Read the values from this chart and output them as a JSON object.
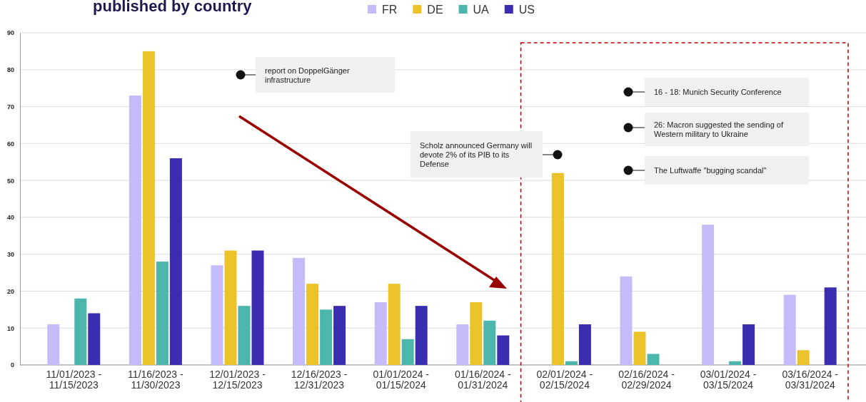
{
  "chart_data": {
    "type": "bar",
    "title": "published by country",
    "categories": [
      "11/01/2023 - 11/15/2023",
      "11/16/2023 - 11/30/2023",
      "12/01/2023 - 12/15/2023",
      "12/16/2023 - 12/31/2023",
      "01/01/2024 - 01/15/2024",
      "01/16/2024 - 01/31/2024",
      "02/01/2024 - 02/15/2024",
      "02/16/2024 - 02/29/2024",
      "03/01/2024 - 03/15/2024",
      "03/16/2024 - 03/31/2024"
    ],
    "series": [
      {
        "name": "FR",
        "color": "#c4bcf8",
        "values": [
          11,
          73,
          27,
          29,
          17,
          11,
          0,
          24,
          38,
          19
        ]
      },
      {
        "name": "DE",
        "color": "#ecc22a",
        "values": [
          0,
          85,
          31,
          22,
          22,
          17,
          52,
          9,
          0,
          4
        ]
      },
      {
        "name": "UA",
        "color": "#4db6ac",
        "values": [
          18,
          28,
          16,
          15,
          7,
          12,
          1,
          3,
          1,
          0
        ]
      },
      {
        "name": "US",
        "color": "#3a2db0",
        "values": [
          14,
          56,
          31,
          16,
          16,
          8,
          11,
          0,
          11,
          21
        ]
      }
    ],
    "ylim": [
      0,
      90
    ],
    "yticks": [
      0,
      10,
      20,
      30,
      40,
      50,
      60,
      70,
      80,
      90
    ],
    "grid": "y",
    "legend": "top",
    "annotations": [
      "report on DoppelGänger infrastructure",
      "Scholz announced Germany will devote 2% of its PIB to its Defense",
      "16 - 18: Munich Security Conference",
      "26: Macron suggested the sending of Western military to Ukraine",
      "The Luftwaffe \"bugging scandal\""
    ]
  }
}
